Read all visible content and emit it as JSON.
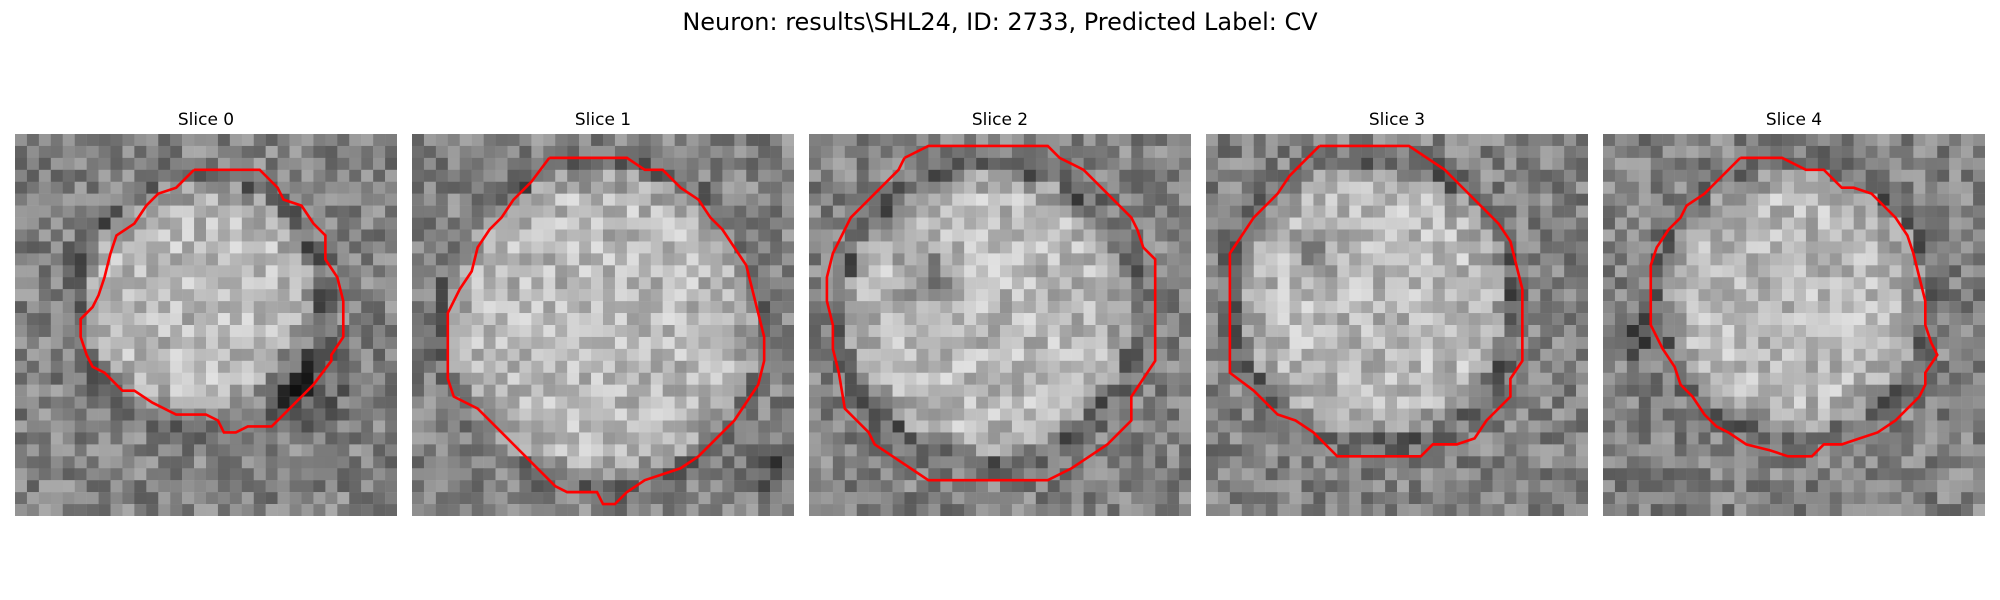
{
  "figure": {
    "title": "Neuron: results\\SHL24, ID: 2733, Predicted Label: CV"
  },
  "panels": [
    {
      "title": "Slice 0"
    },
    {
      "title": "Slice 1"
    },
    {
      "title": "Slice 2"
    },
    {
      "title": "Slice 3"
    },
    {
      "title": "Slice 4"
    }
  ],
  "colors": {
    "contour": "#ff0000",
    "background": "#ffffff"
  }
}
